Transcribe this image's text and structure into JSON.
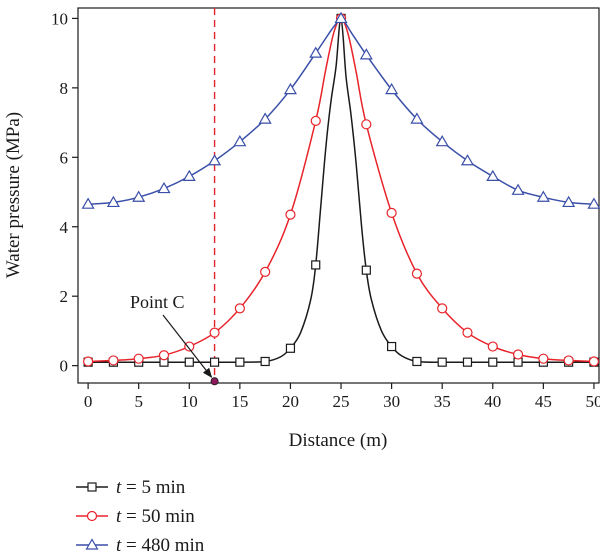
{
  "chart_data": {
    "type": "line",
    "xlabel": "Distance (m)",
    "ylabel": "Water pressure (MPa)",
    "xlim": [
      -1,
      50.5
    ],
    "ylim": [
      -0.5,
      10.3
    ],
    "xticks": [
      0,
      5,
      10,
      15,
      20,
      25,
      30,
      35,
      40,
      45,
      50
    ],
    "yticks": [
      0,
      2,
      4,
      6,
      8,
      10
    ],
    "grid": false,
    "legend": "below",
    "series": [
      {
        "name_prefix": "t",
        "name_suffix": " = 5 min",
        "color": "#1a1a1a",
        "marker": "square",
        "x": [
          0,
          2.5,
          5,
          7.5,
          10,
          12.5,
          15,
          17.5,
          20,
          22.5,
          25,
          27.5,
          30,
          32.5,
          35,
          37.5,
          40,
          42.5,
          45,
          47.5,
          50
        ],
        "y": [
          0.1,
          0.1,
          0.1,
          0.1,
          0.1,
          0.1,
          0.1,
          0.12,
          0.5,
          2.9,
          10.0,
          2.75,
          0.55,
          0.12,
          0.1,
          0.1,
          0.1,
          0.1,
          0.1,
          0.1,
          0.1
        ],
        "curve_x": [
          0,
          2.5,
          5,
          7.5,
          10,
          12.5,
          15,
          17.5,
          19,
          20,
          21,
          22,
          22.5,
          23,
          23.5,
          24,
          24.5,
          25,
          25.5,
          26,
          26.5,
          27,
          27.5,
          28,
          29,
          30,
          31,
          32.5,
          35,
          37.5,
          40,
          42.5,
          45,
          47.5,
          50
        ],
        "curve_y": [
          0.1,
          0.1,
          0.1,
          0.1,
          0.1,
          0.1,
          0.1,
          0.12,
          0.25,
          0.5,
          0.95,
          1.9,
          2.9,
          4.6,
          6.3,
          7.6,
          8.6,
          10.0,
          8.3,
          7.2,
          5.8,
          4.1,
          2.75,
          1.9,
          1.0,
          0.55,
          0.28,
          0.12,
          0.1,
          0.1,
          0.1,
          0.1,
          0.1,
          0.1,
          0.1
        ]
      },
      {
        "name_prefix": "t",
        "name_suffix": " = 50 min",
        "color": "#e8242b",
        "marker": "circle",
        "x": [
          0,
          2.5,
          5,
          7.5,
          10,
          12.5,
          15,
          17.5,
          20,
          22.5,
          25,
          27.5,
          30,
          32.5,
          35,
          37.5,
          40,
          42.5,
          45,
          47.5,
          50
        ],
        "y": [
          0.12,
          0.15,
          0.2,
          0.3,
          0.55,
          0.95,
          1.65,
          2.7,
          4.35,
          7.05,
          10.0,
          6.95,
          4.4,
          2.65,
          1.65,
          0.95,
          0.55,
          0.32,
          0.2,
          0.15,
          0.12
        ],
        "curve_x": [
          0,
          2.5,
          5,
          7.5,
          10,
          12.5,
          15,
          17.5,
          20,
          22.5,
          23.5,
          24.3,
          25,
          25.7,
          26.5,
          27.5,
          30,
          32.5,
          35,
          37.5,
          40,
          42.5,
          45,
          47.5,
          50
        ],
        "curve_y": [
          0.12,
          0.15,
          0.2,
          0.3,
          0.55,
          0.95,
          1.65,
          2.7,
          4.35,
          7.05,
          8.55,
          9.6,
          10.0,
          9.55,
          8.45,
          6.95,
          4.4,
          2.65,
          1.65,
          0.95,
          0.55,
          0.32,
          0.2,
          0.15,
          0.12
        ]
      },
      {
        "name_prefix": "t",
        "name_suffix": " = 480 min",
        "color": "#3a4fa8",
        "marker": "triangle",
        "x": [
          0,
          2.5,
          5,
          7.5,
          10,
          12.5,
          15,
          17.5,
          20,
          22.5,
          25,
          27.5,
          30,
          32.5,
          35,
          37.5,
          40,
          42.5,
          45,
          47.5,
          50
        ],
        "y": [
          4.65,
          4.7,
          4.85,
          5.1,
          5.45,
          5.9,
          6.45,
          7.1,
          7.95,
          9.0,
          10.0,
          8.95,
          7.95,
          7.1,
          6.45,
          5.9,
          5.45,
          5.05,
          4.85,
          4.7,
          4.65
        ],
        "curve_x": [
          0,
          2.5,
          5,
          7.5,
          10,
          12.5,
          15,
          17.5,
          20,
          22.5,
          24,
          24.6,
          25,
          25.4,
          26,
          27.5,
          30,
          32.5,
          35,
          37.5,
          40,
          42.5,
          45,
          47.5,
          50
        ],
        "curve_y": [
          4.65,
          4.7,
          4.85,
          5.1,
          5.45,
          5.9,
          6.45,
          7.1,
          7.95,
          9.0,
          9.65,
          9.88,
          10.0,
          9.88,
          9.6,
          8.95,
          7.95,
          7.1,
          6.45,
          5.9,
          5.45,
          5.05,
          4.85,
          4.7,
          4.65
        ]
      }
    ],
    "reference_line": {
      "x": 12.5,
      "style": "dashed",
      "color": "#e8242b"
    },
    "annotation": {
      "text": "Point C",
      "point": [
        12.5,
        -0.45
      ],
      "color": "#8b1a5c"
    }
  }
}
